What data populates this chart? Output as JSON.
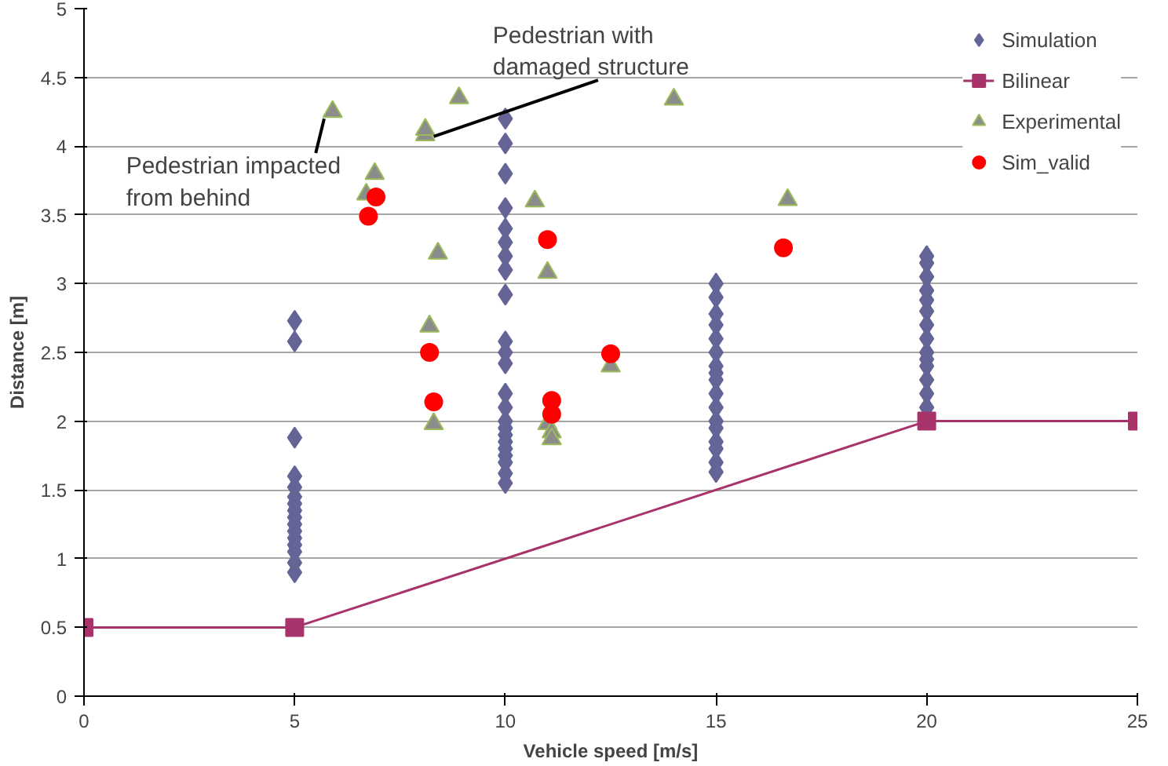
{
  "chart_data": {
    "type": "scatter",
    "xlabel": "Vehicle speed [m/s]",
    "ylabel": "Distance [m]",
    "xlim": [
      0,
      25
    ],
    "xticks": [
      0,
      5,
      10,
      15,
      20,
      25
    ],
    "ylim": [
      0,
      5
    ],
    "yticks": [
      0,
      0.5,
      1,
      1.5,
      2,
      2.5,
      3,
      3.5,
      4,
      4.5,
      5
    ],
    "grid": "y",
    "legend": "top right",
    "series": [
      {
        "name": "Simulation",
        "marker": "diamond",
        "color": "#646496",
        "x": [
          5,
          5,
          5,
          5,
          5,
          5,
          5,
          5,
          5,
          5,
          5,
          5,
          5,
          5,
          5,
          5,
          10,
          10,
          10,
          10,
          10,
          10,
          10,
          10,
          10,
          10,
          10,
          10,
          10,
          10,
          10,
          10,
          10,
          10,
          10,
          10,
          10,
          10,
          10,
          15,
          15,
          15,
          15,
          15,
          15,
          15,
          15,
          15,
          15,
          15,
          15,
          15,
          15,
          15,
          15,
          15,
          20,
          20,
          20,
          20,
          20,
          20,
          20,
          20,
          20,
          20,
          20,
          20,
          20,
          20
        ],
        "values": [
          2.73,
          2.58,
          1.88,
          1.6,
          1.52,
          1.45,
          1.4,
          1.35,
          1.3,
          1.25,
          1.2,
          1.15,
          1.1,
          1.05,
          0.97,
          0.9,
          4.2,
          4.02,
          3.8,
          3.55,
          3.4,
          3.3,
          3.2,
          3.1,
          2.92,
          2.58,
          2.5,
          2.42,
          2.2,
          2.1,
          2.0,
          1.95,
          1.9,
          1.85,
          1.8,
          1.75,
          1.7,
          1.62,
          1.55,
          3.0,
          2.9,
          2.78,
          2.7,
          2.6,
          2.5,
          2.4,
          2.35,
          2.3,
          2.2,
          2.1,
          2.0,
          1.95,
          1.85,
          1.8,
          1.7,
          1.63,
          3.2,
          3.15,
          3.05,
          2.95,
          2.88,
          2.8,
          2.7,
          2.6,
          2.5,
          2.45,
          2.4,
          2.3,
          2.2,
          2.1
        ]
      },
      {
        "name": "Bilinear",
        "type": "line",
        "marker": "square",
        "color": "#a8326a",
        "x": [
          0,
          5,
          20,
          25
        ],
        "values": [
          0.5,
          0.5,
          2,
          2
        ]
      },
      {
        "name": "Experimental",
        "marker": "triangle",
        "color": "#8c8c8c",
        "x": [
          5.9,
          6.9,
          6.7,
          8.1,
          8.1,
          8.9,
          8.4,
          8.2,
          8.3,
          10.7,
          11.0,
          11.0,
          11.1,
          11.1,
          12.5,
          14.0,
          16.7
        ],
        "values": [
          4.25,
          3.8,
          3.65,
          4.08,
          4.12,
          4.35,
          3.22,
          2.69,
          1.98,
          3.6,
          3.08,
          1.98,
          1.92,
          1.87,
          2.4,
          4.34,
          3.61
        ]
      },
      {
        "name": "Sim_valid",
        "marker": "circle",
        "color": "#ff0000",
        "x": [
          6.75,
          6.93,
          8.2,
          8.3,
          11.0,
          11.1,
          11.1,
          12.5,
          16.6
        ],
        "values": [
          3.49,
          3.63,
          2.5,
          2.14,
          3.32,
          2.15,
          2.05,
          2.49,
          3.26
        ]
      }
    ],
    "annotations": [
      {
        "text": "Pedestrian impacted from behind",
        "x": 5.9,
        "y": 4.25
      },
      {
        "text": "Pedestrian with damaged structure",
        "x": 8.1,
        "y": 4.12
      }
    ]
  }
}
